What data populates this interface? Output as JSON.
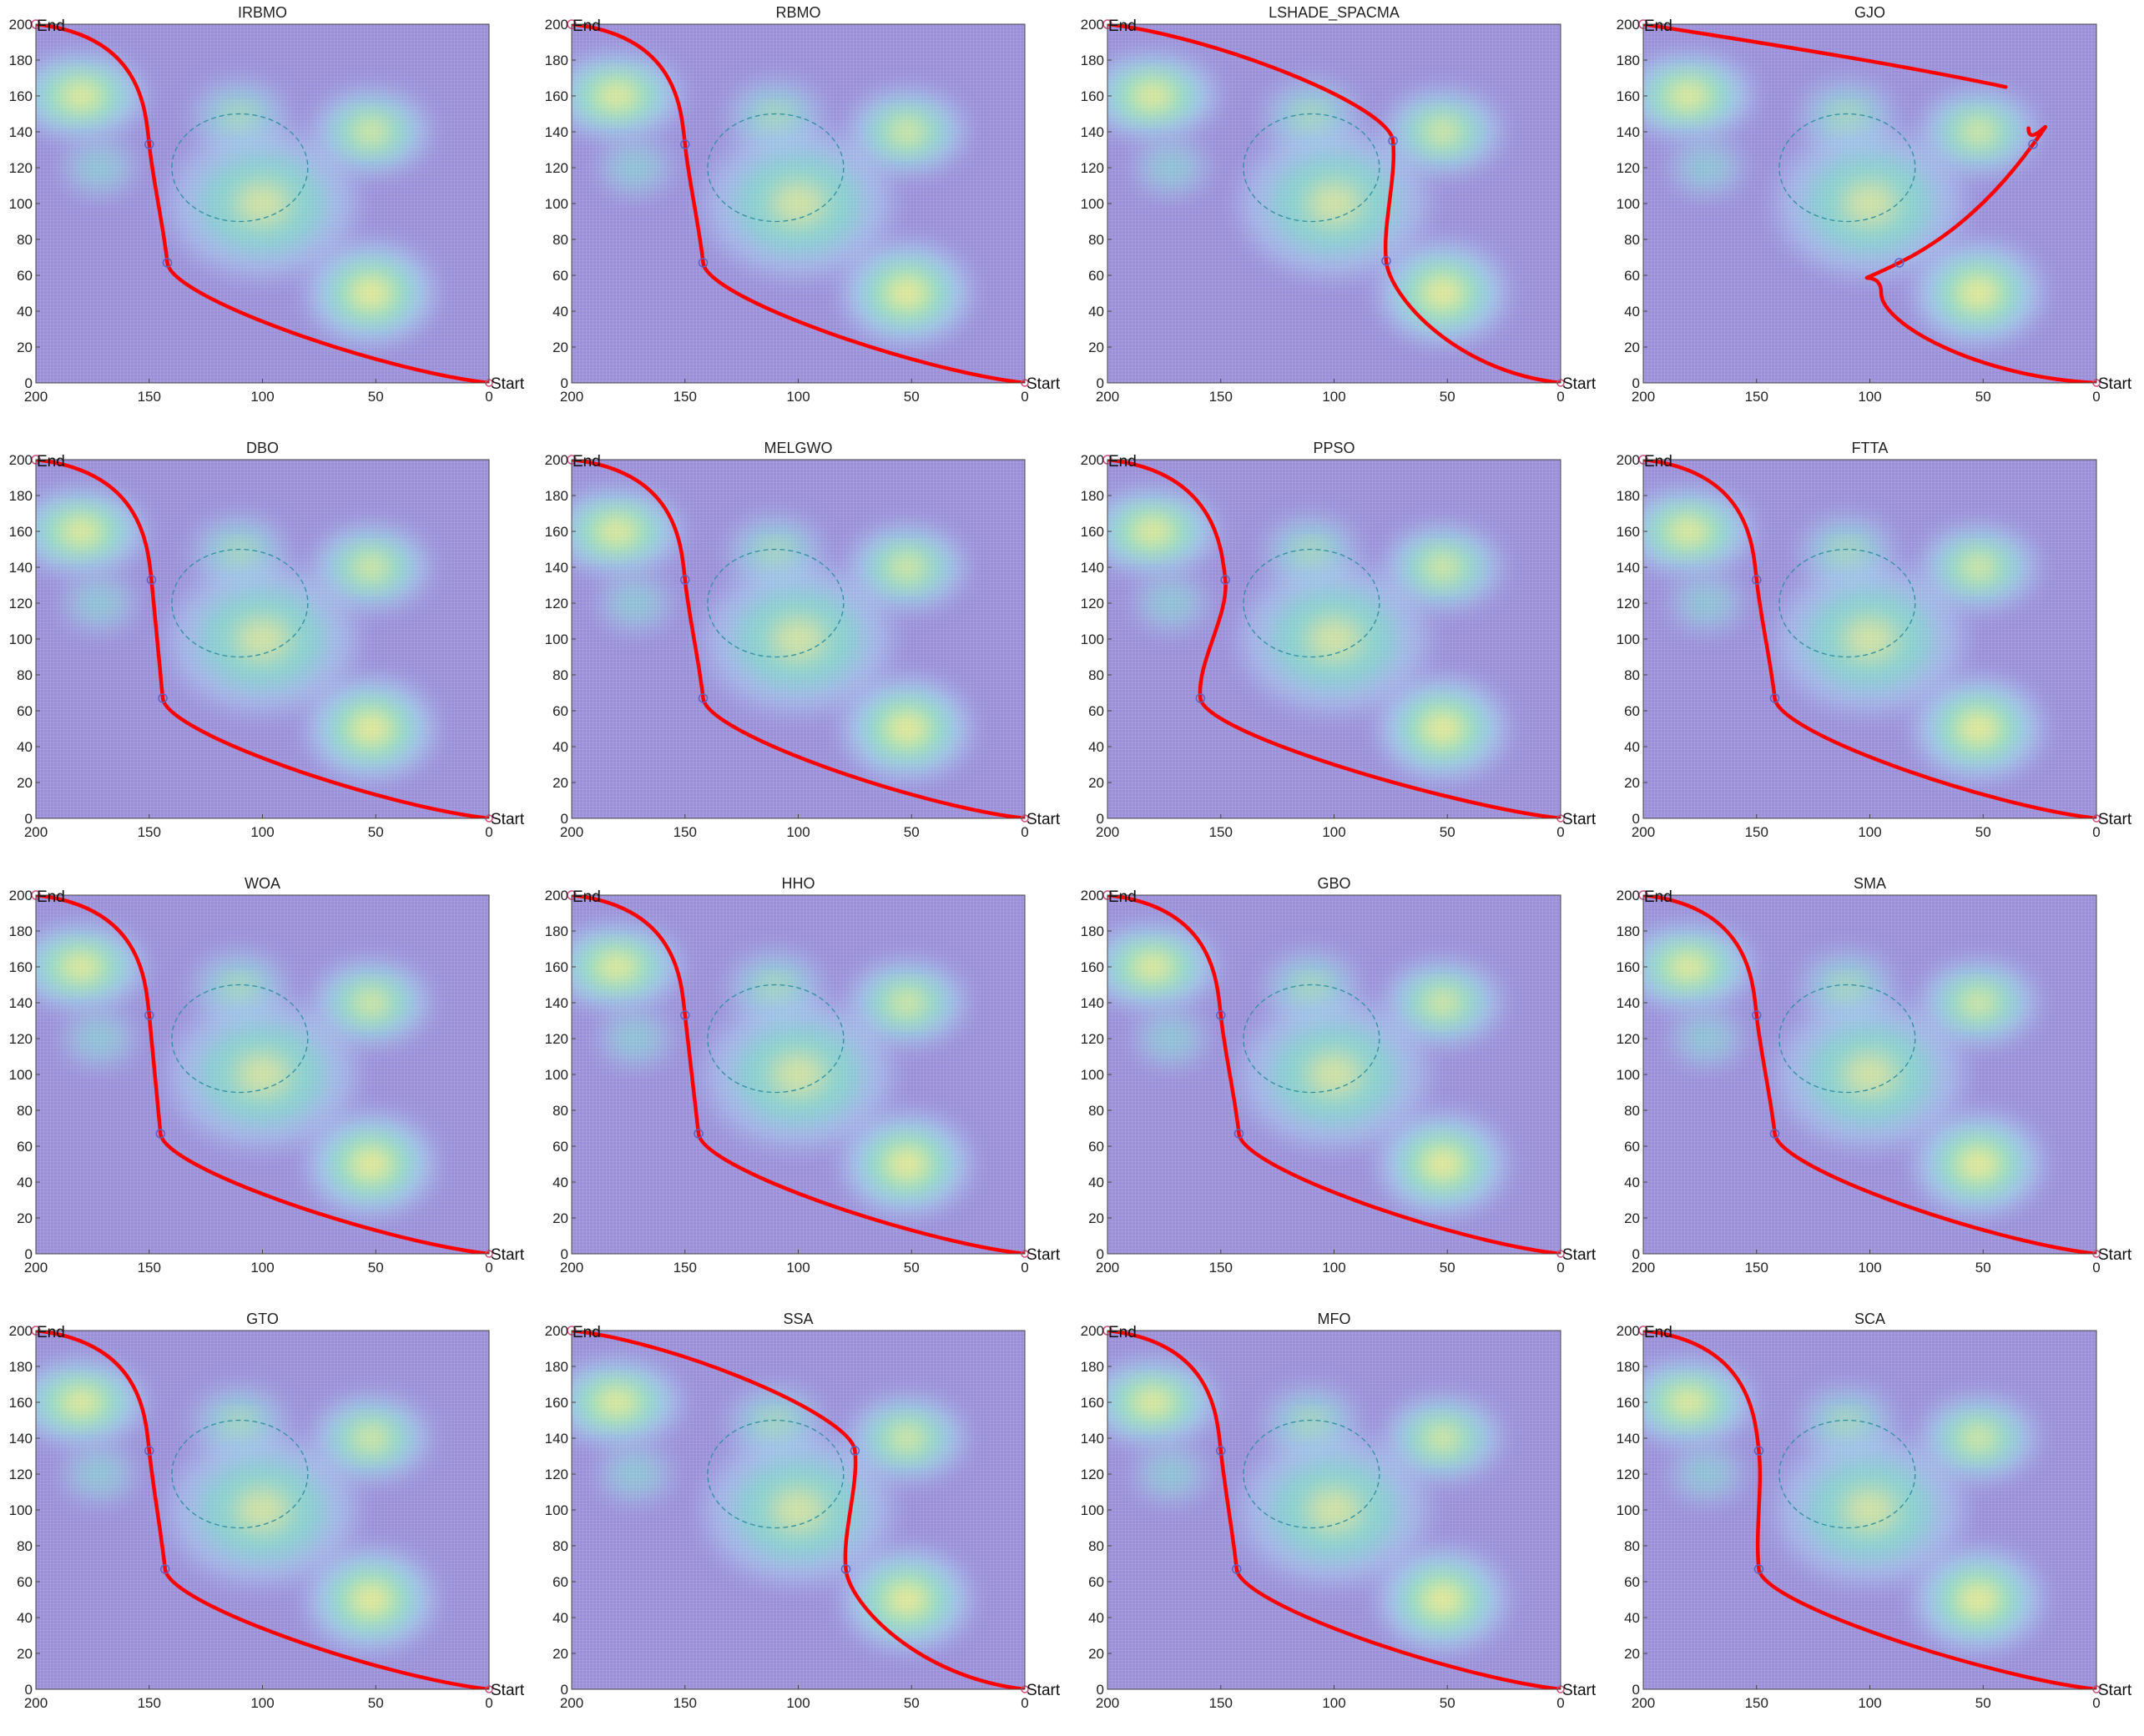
{
  "chart_data": {
    "type": "scatter",
    "xlim": [
      200,
      0
    ],
    "ylim": [
      0,
      200
    ],
    "x_reversed": true,
    "xticks": [
      200,
      150,
      100,
      50,
      0
    ],
    "yticks": [
      0,
      20,
      40,
      60,
      80,
      100,
      120,
      140,
      160,
      180,
      200
    ],
    "start_label": "Start",
    "end_label": "End",
    "start_point": [
      0,
      0
    ],
    "end_point": [
      200,
      200
    ],
    "threat_peaks": [
      {
        "x": 180,
        "y": 160,
        "strength": 1.0,
        "sx": 12,
        "sy": 10
      },
      {
        "x": 172,
        "y": 120,
        "strength": 0.55,
        "sx": 7,
        "sy": 7
      },
      {
        "x": 110,
        "y": 148,
        "strength": 0.65,
        "sx": 9,
        "sy": 9
      },
      {
        "x": 100,
        "y": 100,
        "strength": 0.75,
        "sx": 18,
        "sy": 18
      },
      {
        "x": 52,
        "y": 140,
        "strength": 0.9,
        "sx": 11,
        "sy": 10
      },
      {
        "x": 52,
        "y": 50,
        "strength": 1.0,
        "sx": 12,
        "sy": 12
      }
    ],
    "circle_obstacle": {
      "cx": 110,
      "cy": 120,
      "r": 30
    },
    "colors": {
      "background": "#9a8fd8",
      "path": "#ff0000",
      "waypoint": "#6060c0",
      "obstacle": "#2f8fa0"
    },
    "plots": [
      {
        "title": "IRBMO",
        "waypoints": [
          [
            150,
            133
          ],
          [
            142,
            67
          ]
        ]
      },
      {
        "title": "RBMO",
        "waypoints": [
          [
            150,
            133
          ],
          [
            142,
            67
          ]
        ]
      },
      {
        "title": "LSHADE_SPACMA",
        "waypoints": [
          [
            74,
            135
          ],
          [
            77,
            68
          ]
        ]
      },
      {
        "title": "GJO",
        "waypoints": [
          [
            28,
            133
          ],
          [
            87,
            67
          ]
        ],
        "broken": true
      },
      {
        "title": "DBO",
        "waypoints": [
          [
            149,
            133
          ],
          [
            144,
            67
          ]
        ]
      },
      {
        "title": "MELGWO",
        "waypoints": [
          [
            150,
            133
          ],
          [
            142,
            67
          ]
        ]
      },
      {
        "title": "PPSO",
        "waypoints": [
          [
            148,
            133
          ],
          [
            159,
            67
          ]
        ]
      },
      {
        "title": "FTTA",
        "waypoints": [
          [
            150,
            133
          ],
          [
            142,
            67
          ]
        ]
      },
      {
        "title": "WOA",
        "waypoints": [
          [
            150,
            133
          ],
          [
            145,
            67
          ]
        ]
      },
      {
        "title": "HHO",
        "waypoints": [
          [
            150,
            133
          ],
          [
            144,
            67
          ]
        ]
      },
      {
        "title": "GBO",
        "waypoints": [
          [
            150,
            133
          ],
          [
            142,
            67
          ]
        ]
      },
      {
        "title": "SMA",
        "waypoints": [
          [
            150,
            133
          ],
          [
            142,
            67
          ]
        ]
      },
      {
        "title": "GTO",
        "waypoints": [
          [
            150,
            133
          ],
          [
            143,
            67
          ]
        ]
      },
      {
        "title": "SSA",
        "waypoints": [
          [
            75,
            133
          ],
          [
            79,
            67
          ]
        ]
      },
      {
        "title": "MFO",
        "waypoints": [
          [
            150,
            133
          ],
          [
            143,
            67
          ]
        ]
      },
      {
        "title": "SCA",
        "waypoints": [
          [
            149,
            133
          ],
          [
            149,
            67
          ]
        ]
      }
    ]
  }
}
